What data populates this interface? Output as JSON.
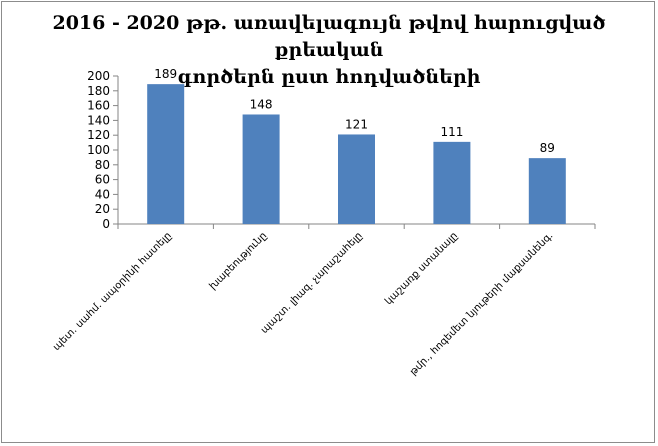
{
  "chart_data": {
    "type": "bar",
    "title_lines": [
      "2016 - 2020 թթ. առավելագույն թվով հարուցված քրեական",
      "գործերն ըստ հոդվածների"
    ],
    "categories": [
      "պետ. սահմ. ապօրինի հատելը",
      "խաբեությունը",
      "պաշտ. լիազ. չարաշահելը",
      "կաշառք ստանալը",
      "թմր., հոգեմետ նյութերի մաքսանենգ."
    ],
    "values": [
      189,
      148,
      121,
      111,
      89
    ],
    "ylim": [
      0,
      200
    ],
    "yticks": [
      0,
      20,
      40,
      60,
      80,
      100,
      120,
      140,
      160,
      180,
      200
    ],
    "grid": false,
    "legend": "none",
    "bar_color": "#4f81bd"
  }
}
